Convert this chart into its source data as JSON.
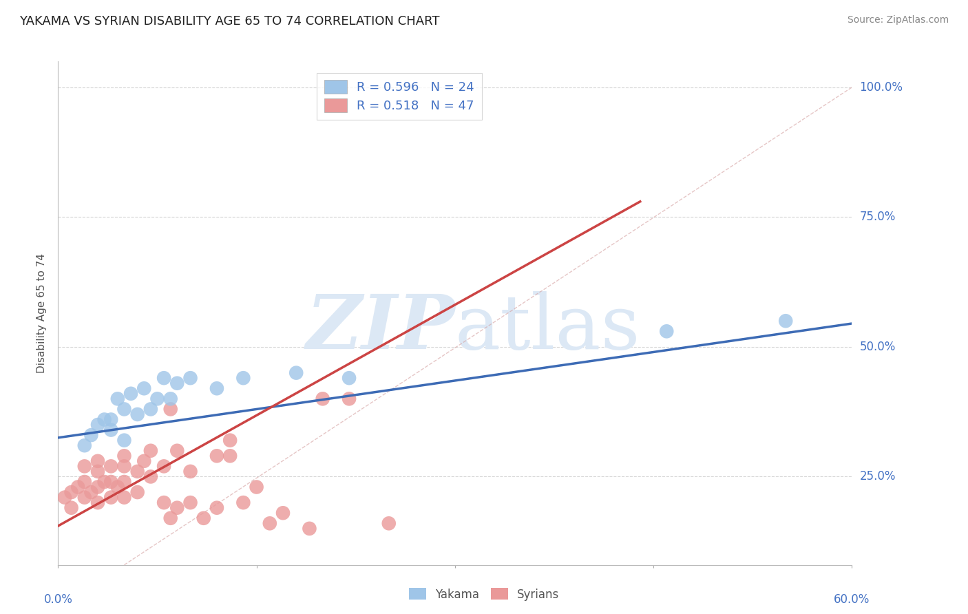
{
  "title": "YAKAMA VS SYRIAN DISABILITY AGE 65 TO 74 CORRELATION CHART",
  "source": "Source: ZipAtlas.com",
  "ylabel": "Disability Age 65 to 74",
  "xlim": [
    0.0,
    0.6
  ],
  "ylim": [
    0.08,
    1.05
  ],
  "yticks": [
    0.25,
    0.5,
    0.75,
    1.0
  ],
  "ytick_labels": [
    "25.0%",
    "50.0%",
    "75.0%",
    "100.0%"
  ],
  "xticks": [
    0.0,
    0.15,
    0.3,
    0.45,
    0.6
  ],
  "yakama_R": 0.596,
  "yakama_N": 24,
  "syrian_R": 0.518,
  "syrian_N": 47,
  "yakama_color": "#9fc5e8",
  "syrian_color": "#ea9999",
  "yakama_line_color": "#3d6bb5",
  "syrian_line_color": "#cc4444",
  "grid_color": "#cccccc",
  "title_color": "#222222",
  "axis_label_color": "#4472c4",
  "watermark_color": "#dce8f5",
  "background_color": "#ffffff",
  "diag_color": "#d5a0a0",
  "yakama_x": [
    0.02,
    0.025,
    0.03,
    0.035,
    0.04,
    0.04,
    0.045,
    0.05,
    0.05,
    0.055,
    0.06,
    0.065,
    0.07,
    0.075,
    0.08,
    0.085,
    0.09,
    0.1,
    0.12,
    0.14,
    0.18,
    0.22,
    0.46,
    0.55
  ],
  "yakama_y": [
    0.31,
    0.33,
    0.35,
    0.36,
    0.34,
    0.36,
    0.4,
    0.32,
    0.38,
    0.41,
    0.37,
    0.42,
    0.38,
    0.4,
    0.44,
    0.4,
    0.43,
    0.44,
    0.42,
    0.44,
    0.45,
    0.44,
    0.53,
    0.55
  ],
  "syrian_x": [
    0.005,
    0.01,
    0.01,
    0.015,
    0.02,
    0.02,
    0.02,
    0.025,
    0.03,
    0.03,
    0.03,
    0.03,
    0.035,
    0.04,
    0.04,
    0.04,
    0.045,
    0.05,
    0.05,
    0.05,
    0.05,
    0.06,
    0.06,
    0.065,
    0.07,
    0.07,
    0.08,
    0.08,
    0.085,
    0.09,
    0.09,
    0.1,
    0.1,
    0.11,
    0.12,
    0.12,
    0.13,
    0.13,
    0.14,
    0.15,
    0.16,
    0.17,
    0.19,
    0.2,
    0.22,
    0.25,
    0.085
  ],
  "syrian_y": [
    0.21,
    0.19,
    0.22,
    0.23,
    0.21,
    0.24,
    0.27,
    0.22,
    0.2,
    0.23,
    0.26,
    0.28,
    0.24,
    0.21,
    0.24,
    0.27,
    0.23,
    0.21,
    0.24,
    0.27,
    0.29,
    0.22,
    0.26,
    0.28,
    0.25,
    0.3,
    0.2,
    0.27,
    0.17,
    0.19,
    0.3,
    0.2,
    0.26,
    0.17,
    0.19,
    0.29,
    0.29,
    0.32,
    0.2,
    0.23,
    0.16,
    0.18,
    0.15,
    0.4,
    0.4,
    0.16,
    0.38
  ],
  "blue_line_x0": 0.0,
  "blue_line_y0": 0.325,
  "blue_line_x1": 0.6,
  "blue_line_y1": 0.545,
  "pink_line_x0": 0.0,
  "pink_line_y0": 0.155,
  "pink_line_x1": 0.44,
  "pink_line_y1": 0.78
}
